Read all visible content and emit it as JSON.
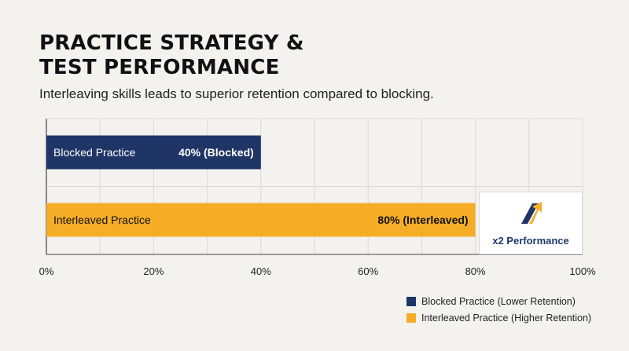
{
  "title_line1": "PRACTICE STRATEGY &",
  "title_line2": "TEST PERFORMANCE",
  "subtitle": "Interleaving skills leads to superior retention compared to blocking.",
  "colors": {
    "blocked": "#1f3566",
    "interleaved": "#f5ad27",
    "background": "#f3f2ef",
    "grid": "#d9d9d6"
  },
  "logo": {
    "text": "x2 Performance",
    "icon": "upward-arrow-icon"
  },
  "legend": [
    {
      "label": "Blocked Practice (Lower Retention)",
      "color": "#1f3566"
    },
    {
      "label": "Interleaved Practice (Higher Retention)",
      "color": "#f5ad27"
    }
  ],
  "chart_data": {
    "type": "bar",
    "orientation": "horizontal",
    "categories": [
      "Blocked Practice",
      "Interleaved Practice"
    ],
    "values": [
      40,
      80
    ],
    "value_labels": [
      "40% (Blocked)",
      "80% (Interleaved)"
    ],
    "xlim": [
      0,
      100
    ],
    "xticks": [
      "0%",
      "20%",
      "40%",
      "60%",
      "80%",
      "100%"
    ],
    "grid": true,
    "legend_position": "bottom-right"
  }
}
